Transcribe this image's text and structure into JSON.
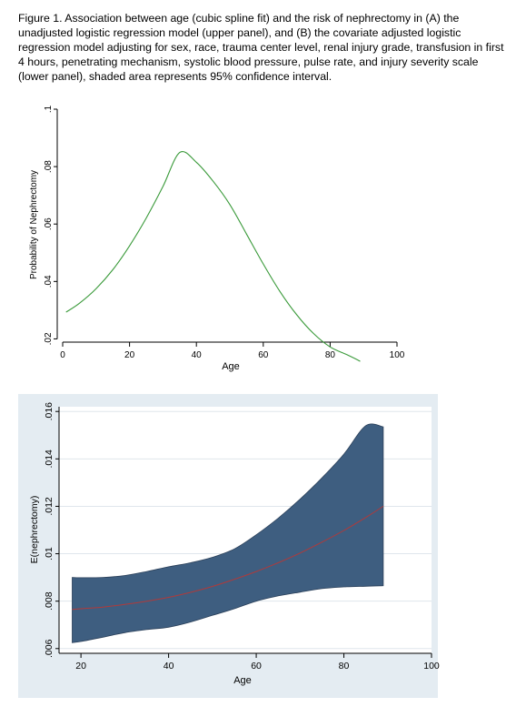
{
  "caption": "Figure 1. Association between age (cubic spline fit) and the risk of nephrectomy in (A) the unadjusted logistic regression model (upper panel), and (B) the covariate adjusted logistic regression model adjusting for sex, race, trauma center level, renal injury grade, transfusion in first 4 hours, penetrating mechanism, systolic blood pressure, pulse rate, and injury severity scale (lower panel), shaded area represents 95% confidence interval.",
  "colors": {
    "line_top": "#3a9a3a",
    "band": "#3e5e80",
    "band_edge": "#2a3f58",
    "line_bottom": "#b03a3a",
    "panel_bg": "#e4ecf2"
  },
  "chart_data": [
    {
      "type": "line",
      "title": "",
      "xlabel": "Age",
      "ylabel": "Probability of Nephrectomy",
      "xlim": [
        0,
        100
      ],
      "ylim": [
        0.01,
        0.1
      ],
      "xticks": [
        "0",
        "20",
        "40",
        "60",
        "80",
        "100"
      ],
      "yticks": [
        ".02",
        ".04",
        ".06",
        ".08",
        ".1"
      ],
      "grid": false,
      "x": [
        1,
        5,
        10,
        15,
        20,
        25,
        30,
        35,
        40,
        45,
        50,
        55,
        60,
        65,
        70,
        75,
        80,
        85,
        89
      ],
      "y": [
        0.0293,
        0.0324,
        0.0375,
        0.0441,
        0.0524,
        0.0621,
        0.0731,
        0.0849,
        0.0815,
        0.0749,
        0.0668,
        0.0565,
        0.0461,
        0.0365,
        0.0284,
        0.0219,
        0.0172,
        0.0145,
        0.0122
      ]
    },
    {
      "type": "area",
      "title": "",
      "xlabel": "Age",
      "ylabel": "E(nephrectomy)",
      "xlim": [
        15,
        100
      ],
      "ylim": [
        0.0058,
        0.0162
      ],
      "xticks": [
        "20",
        "40",
        "60",
        "80",
        "100"
      ],
      "yticks": [
        ".006",
        ".008",
        ".01",
        ".012",
        ".014",
        ".016"
      ],
      "grid": true,
      "x": [
        18,
        20,
        25,
        30,
        35,
        40,
        45,
        50,
        55,
        60,
        65,
        70,
        75,
        80,
        85,
        89
      ],
      "fit": [
        0.00765,
        0.00768,
        0.00775,
        0.00786,
        0.008,
        0.00816,
        0.00837,
        0.00862,
        0.00892,
        0.00925,
        0.00962,
        0.01003,
        0.01049,
        0.01098,
        0.01153,
        0.012
      ],
      "upper": [
        0.009,
        0.00899,
        0.009,
        0.00908,
        0.00925,
        0.00945,
        0.00962,
        0.00985,
        0.0102,
        0.0108,
        0.0115,
        0.0123,
        0.0132,
        0.0142,
        0.0154,
        0.01535
      ],
      "lower": [
        0.00625,
        0.0063,
        0.00648,
        0.00667,
        0.0068,
        0.0069,
        0.00712,
        0.0074,
        0.00768,
        0.008,
        0.00822,
        0.00838,
        0.00853,
        0.0086,
        0.00863,
        0.00865
      ]
    }
  ]
}
